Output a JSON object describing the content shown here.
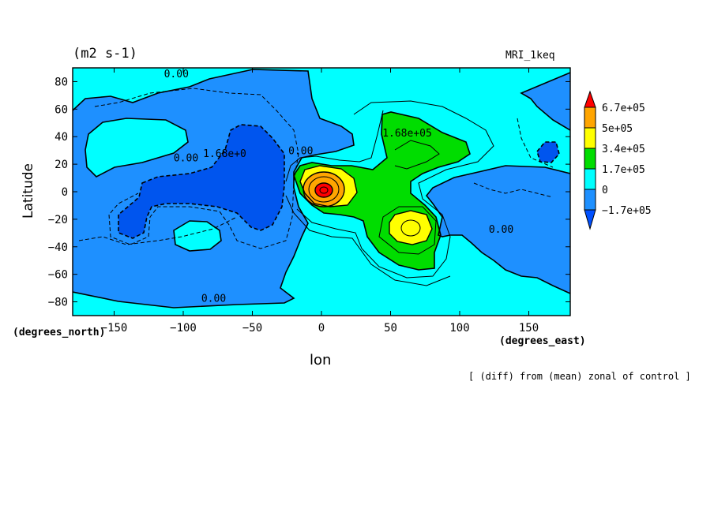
{
  "header": {
    "units": "(m2 s-1)",
    "model": "MRI_1keq"
  },
  "axes": {
    "ylabel": "Latitude",
    "xlabel": "lon",
    "x_unit_left": "(degrees_north)",
    "x_unit_right": "(degrees_east)",
    "note": "[ (diff) from (mean) zonal of control ]"
  },
  "chart_data": {
    "type": "heatmap",
    "title": "(m2 s-1)",
    "xlabel": "lon",
    "ylabel": "Latitude",
    "xlim": [
      -180,
      180
    ],
    "ylim": [
      -90,
      90
    ],
    "x_ticks": [
      -150,
      -100,
      -50,
      0,
      50,
      100,
      150
    ],
    "y_ticks": [
      -80,
      -60,
      -40,
      -20,
      0,
      20,
      40,
      60,
      80
    ],
    "colorbar": {
      "levels": [
        "6.7e+05",
        "5e+05",
        "3.4e+05",
        "1.7e+05",
        "0",
        "-1.7e+05"
      ],
      "colors": [
        "#ff0000",
        "#ffa500",
        "#ffff00",
        "#00dd00",
        "#00ffff",
        "#1e90ff",
        "#0050ff"
      ]
    },
    "contour_labels": [
      {
        "text": "0.00",
        "lon": -105,
        "lat": 86
      },
      {
        "text": "1.68e+0",
        "lon": -70,
        "lat": 28
      },
      {
        "text": "0.00",
        "lon": -98,
        "lat": 25
      },
      {
        "text": "0.00",
        "lon": -15,
        "lat": 30
      },
      {
        "text": "1.68e+05",
        "lon": 62,
        "lat": 43
      },
      {
        "text": "0.00",
        "lon": 130,
        "lat": -27
      },
      {
        "text": "0.00",
        "lon": -78,
        "lat": -77
      }
    ],
    "features": [
      {
        "name": "maximum",
        "lon": 2,
        "lat": 0,
        "value": 670000
      },
      {
        "name": "secondary maximum",
        "lon": 62,
        "lat": -26,
        "value": 340000
      },
      {
        "name": "minimum",
        "lon": -60,
        "lat": 15,
        "value": -170000
      }
    ]
  }
}
